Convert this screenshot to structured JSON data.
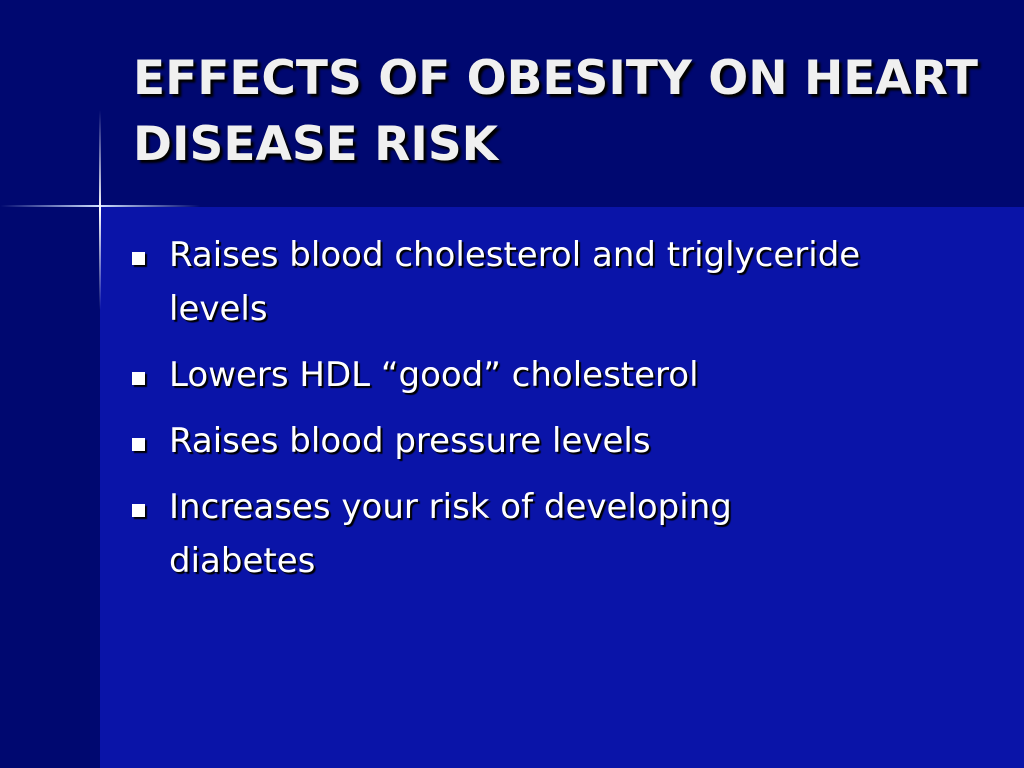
{
  "slide": {
    "title": "EFFECTS OF OBESITY ON HEART DISEASE RISK",
    "bullets": [
      "Raises blood cholesterol and triglyceride levels",
      "Lowers HDL “good” cholesterol",
      "Raises blood pressure levels",
      "Increases your risk of developing diabetes"
    ]
  }
}
